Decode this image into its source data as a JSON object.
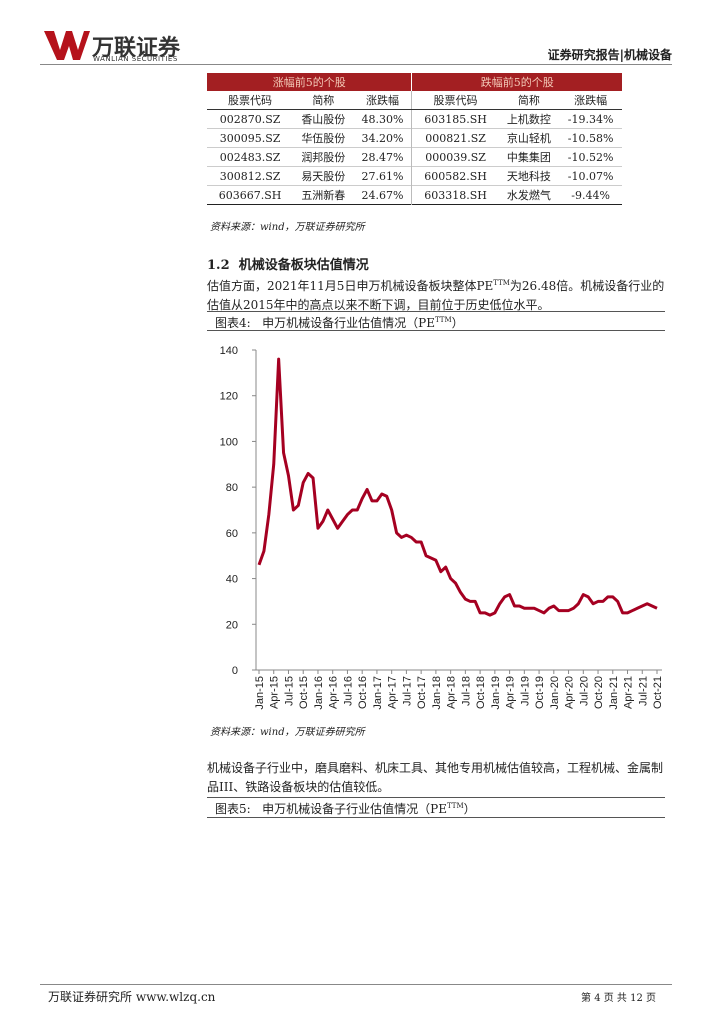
{
  "header": {
    "company": "万联证券",
    "company_en": "WANLIAN SECURITIES",
    "right": "证券研究报告|机械设备"
  },
  "table": {
    "groups": [
      "涨幅前5的个股",
      "跌幅前5的个股"
    ],
    "columns": [
      "股票代码",
      "简称",
      "涨跌幅",
      "股票代码",
      "简称",
      "涨跌幅"
    ],
    "rows": [
      [
        "002870.SZ",
        "香山股份",
        "48.30%",
        "603185.SH",
        "上机数控",
        "-19.34%"
      ],
      [
        "300095.SZ",
        "华伍股份",
        "34.20%",
        "000821.SZ",
        "京山轻机",
        "-10.58%"
      ],
      [
        "002483.SZ",
        "润邦股份",
        "28.47%",
        "000039.SZ",
        "中集集团",
        "-10.52%"
      ],
      [
        "300812.SZ",
        "易天股份",
        "27.61%",
        "600582.SH",
        "天地科技",
        "-10.07%"
      ],
      [
        "603667.SH",
        "五洲新春",
        "24.67%",
        "603318.SH",
        "水发燃气",
        "-9.44%"
      ]
    ]
  },
  "source1": "资料来源：wind，万联证券研究所",
  "section": {
    "number": "1.2",
    "title": "机械设备板块估值情况"
  },
  "paragraph1": {
    "before": "估值方面，2021年11月5日申万机械设备板块整体PE",
    "sup": "TTM",
    "after": "为26.48倍。机械设备行业的估值从2015年中的高点以来不断下调，目前位于历史低位水平。"
  },
  "figure4": {
    "label": "图表4:",
    "title_before": "申万机械设备行业估值情况（PE",
    "sup": "TTM",
    "title_after": "）"
  },
  "chart_data": {
    "type": "line",
    "color": "#a50021",
    "categories": [
      "Jan-15",
      null,
      null,
      "Apr-15",
      null,
      null,
      "Jul-15",
      null,
      null,
      "Oct-15",
      null,
      null,
      "Jan-16",
      null,
      null,
      "Apr-16",
      null,
      null,
      "Jul-16",
      null,
      null,
      "Oct-16",
      null,
      null,
      "Jan-17",
      null,
      null,
      "Apr-17",
      null,
      null,
      "Jul-17",
      null,
      null,
      "Oct-17",
      null,
      null,
      "Jan-18",
      null,
      null,
      "Apr-18",
      null,
      null,
      "Jul-18",
      null,
      null,
      "Oct-18",
      null,
      null,
      "Jan-19",
      null,
      null,
      "Apr-19",
      null,
      null,
      "Jul-19",
      null,
      null,
      "Oct-19",
      null,
      null,
      "Jan-20",
      null,
      null,
      "Apr-20",
      null,
      null,
      "Jul-20",
      null,
      null,
      "Oct-20",
      null,
      null,
      "Jan-21",
      null,
      null,
      "Apr-21",
      null,
      null,
      "Jul-21",
      null,
      null,
      "Oct-21"
    ],
    "values": [
      46,
      52,
      68,
      90,
      136,
      95,
      85,
      70,
      72,
      82,
      86,
      84,
      62,
      65,
      70,
      66,
      62,
      65,
      68,
      70,
      70,
      75,
      79,
      74,
      74,
      77,
      76,
      70,
      60,
      58,
      59,
      58,
      56,
      56,
      50,
      49,
      48,
      43,
      45,
      40,
      38,
      34,
      31,
      30,
      30,
      25,
      25,
      24,
      25,
      29,
      32,
      33,
      28,
      28,
      27,
      27,
      27,
      26,
      25,
      27,
      28,
      26,
      26,
      26,
      27,
      29,
      33,
      32,
      29,
      30,
      30,
      32,
      32,
      30,
      25,
      25,
      26,
      27,
      28,
      29,
      28,
      27
    ],
    "ylim": [
      0,
      140
    ],
    "yticks": [
      0,
      20,
      40,
      60,
      80,
      100,
      120,
      140
    ]
  },
  "source2": "资料来源：wind，万联证券研究所",
  "paragraph2": "机械设备子行业中，磨具磨料、机床工具、其他专用机械估值较高，工程机械、金属制品III、铁路设备板块的估值较低。",
  "figure5": {
    "label": "图表5:",
    "title_before": "申万机械设备子行业估值情况（PE",
    "sup": "TTM",
    "title_after": "）"
  },
  "footer": {
    "left": "万联证券研究所 www.wlzq.cn",
    "right": "第 4 页 共 12 页"
  }
}
